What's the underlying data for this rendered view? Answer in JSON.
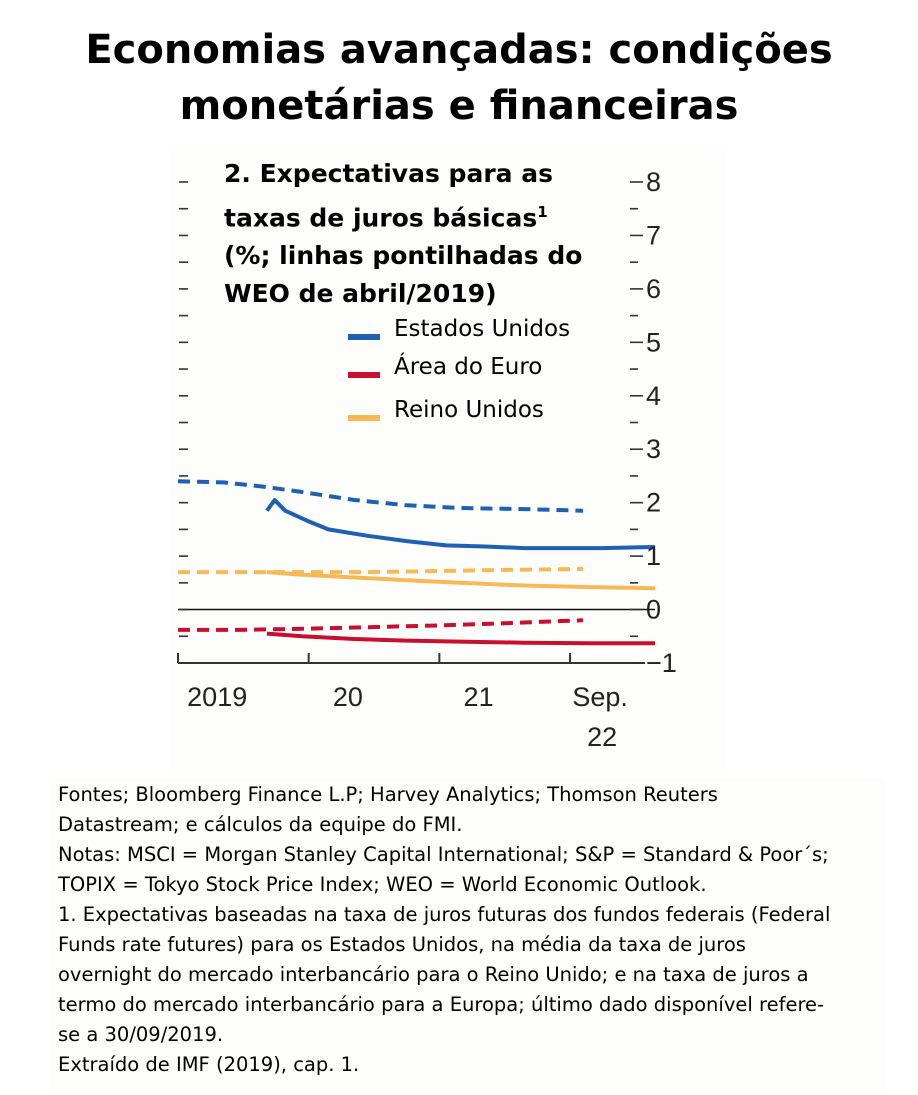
{
  "page": {
    "title_line1": "Economias avançadas: condições",
    "title_line2": "monetárias e financeiras"
  },
  "chart_data": {
    "type": "line",
    "title_lines": [
      "2. Expectativas para as",
      "taxas de juros básicas",
      "(%; linhas pontilhadas do",
      "WEO de abril/2019)"
    ],
    "title_superscript": "1",
    "xlabel": "",
    "ylabel": "",
    "ylim": [
      -1,
      8
    ],
    "y_ticks": [
      "8",
      "7",
      "6",
      "5",
      "4",
      "3",
      "2",
      "1",
      "0",
      "−1"
    ],
    "x_ticks": [
      {
        "label": "2019",
        "x": 2019.15
      },
      {
        "label": "20",
        "x": 2020.15
      },
      {
        "label": "21",
        "x": 2021.15
      },
      {
        "label": "Sep.",
        "label2": "22",
        "x": 2022.08
      }
    ],
    "x_range": [
      2018.85,
      2022.5
    ],
    "grid": false,
    "legend_position": "top-center",
    "series": [
      {
        "name": "Estados Unidos",
        "color": "#1f5fb4",
        "style": "solid",
        "points": [
          [
            2019.53,
            1.85
          ],
          [
            2019.59,
            2.05
          ],
          [
            2019.67,
            1.85
          ],
          [
            2019.85,
            1.65
          ],
          [
            2020.0,
            1.5
          ],
          [
            2020.3,
            1.38
          ],
          [
            2020.6,
            1.28
          ],
          [
            2020.9,
            1.2
          ],
          [
            2021.2,
            1.18
          ],
          [
            2021.5,
            1.15
          ],
          [
            2021.8,
            1.15
          ],
          [
            2022.1,
            1.15
          ],
          [
            2022.5,
            1.17
          ]
        ]
      },
      {
        "name": "Estados Unidos (WEO abr/2019)",
        "color": "#1f5fb4",
        "style": "dashed",
        "points": [
          [
            2018.85,
            2.4
          ],
          [
            2019.2,
            2.38
          ],
          [
            2019.5,
            2.3
          ],
          [
            2019.8,
            2.2
          ],
          [
            2020.2,
            2.05
          ],
          [
            2020.6,
            1.95
          ],
          [
            2021.0,
            1.9
          ],
          [
            2021.5,
            1.88
          ],
          [
            2021.95,
            1.85
          ]
        ]
      },
      {
        "name": "Área do Euro",
        "color": "#c8102e",
        "style": "solid",
        "points": [
          [
            2019.53,
            -0.45
          ],
          [
            2019.8,
            -0.5
          ],
          [
            2020.2,
            -0.55
          ],
          [
            2020.6,
            -0.58
          ],
          [
            2021.0,
            -0.6
          ],
          [
            2021.5,
            -0.62
          ],
          [
            2022.0,
            -0.63
          ],
          [
            2022.5,
            -0.63
          ]
        ]
      },
      {
        "name": "Área do Euro (WEO abr/2019)",
        "color": "#c8102e",
        "style": "dashed",
        "points": [
          [
            2018.85,
            -0.38
          ],
          [
            2019.3,
            -0.38
          ],
          [
            2019.8,
            -0.36
          ],
          [
            2020.3,
            -0.33
          ],
          [
            2020.8,
            -0.3
          ],
          [
            2021.3,
            -0.26
          ],
          [
            2021.95,
            -0.2
          ]
        ]
      },
      {
        "name": "Reino Unidos",
        "color": "#f7b955",
        "style": "solid",
        "points": [
          [
            2019.53,
            0.7
          ],
          [
            2019.8,
            0.65
          ],
          [
            2020.2,
            0.6
          ],
          [
            2020.6,
            0.55
          ],
          [
            2021.0,
            0.5
          ],
          [
            2021.5,
            0.45
          ],
          [
            2022.0,
            0.42
          ],
          [
            2022.5,
            0.4
          ]
        ]
      },
      {
        "name": "Reino Unidos (WEO abr/2019)",
        "color": "#f7b955",
        "style": "dashed",
        "points": [
          [
            2018.85,
            0.7
          ],
          [
            2019.3,
            0.7
          ],
          [
            2019.8,
            0.7
          ],
          [
            2020.3,
            0.7
          ],
          [
            2020.8,
            0.72
          ],
          [
            2021.3,
            0.74
          ],
          [
            2021.95,
            0.76
          ]
        ]
      }
    ],
    "legend": [
      {
        "label": "Estados Unidos",
        "color": "#1f5fb4"
      },
      {
        "label": "Área do Euro",
        "color": "#c8102e"
      },
      {
        "label": "Reino Unidos",
        "color": "#f7b955"
      }
    ]
  },
  "notes": {
    "lines": [
      "Fontes; Bloomberg Finance L.P; Harvey Analytics; Thomson Reuters",
      "Datastream; e cálculos da equipe do FMI.",
      "Notas: MSCI = Morgan Stanley Capital International; S&P = Standard & Poor´s;",
      "TOPIX = Tokyo Stock Price Index; WEO = World Economic Outlook.",
      "1. Expectativas baseadas na taxa de juros futuras dos fundos federais (Federal",
      "Funds rate futures) para os Estados Unidos, na média da taxa de juros",
      "overnight do mercado interbancário para o Reino Unido; e na taxa de juros a",
      "termo do mercado interbancário para a Europa; último dado disponível refere-",
      "se a 30/09/2019.",
      "Extraído de IMF (2019), cap. 1."
    ]
  }
}
